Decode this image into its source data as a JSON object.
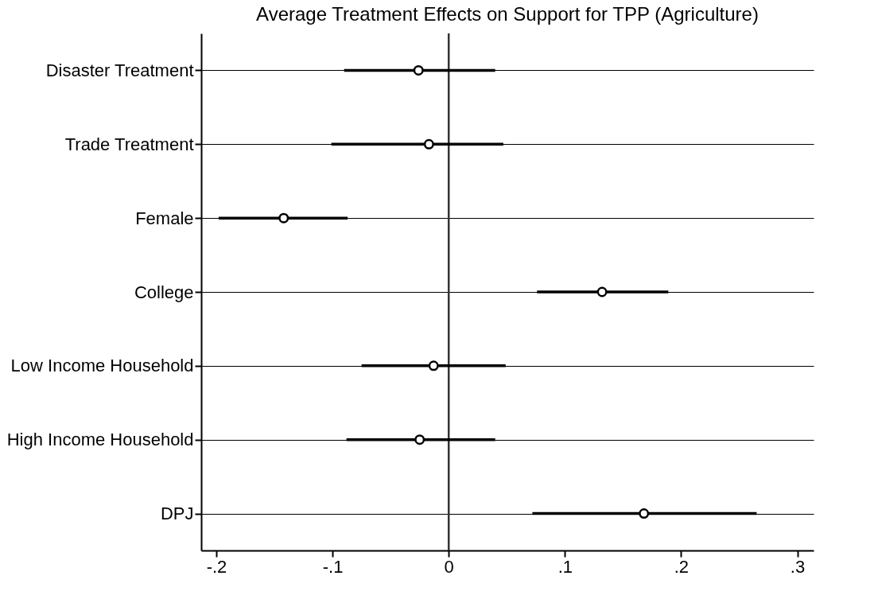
{
  "chart_data": {
    "type": "scatter",
    "orientation": "horizontal",
    "title": "Average Treatment Effects on Support for TPP (Agriculture)",
    "categories": [
      "Disaster Treatment",
      "Trade Treatment",
      "Female",
      "College",
      "Low Income Household",
      "High Income Household",
      "DPJ"
    ],
    "values": [
      -0.026,
      -0.017,
      -0.142,
      0.132,
      -0.013,
      -0.025,
      0.168
    ],
    "errors": [
      [
        -0.09,
        0.04
      ],
      [
        -0.101,
        0.047
      ],
      [
        -0.198,
        -0.087
      ],
      [
        0.076,
        0.189
      ],
      [
        -0.075,
        0.049
      ],
      [
        -0.088,
        0.04
      ],
      [
        0.072,
        0.265
      ]
    ],
    "color": "#000000",
    "marker": "circle",
    "grid": "y",
    "xlim": [
      -0.213,
      0.314
    ],
    "xticks": [
      {
        "value": -0.2,
        "label": "-.2"
      },
      {
        "value": -0.1,
        "label": "-.1"
      },
      0,
      {
        "value": 0.1,
        "label": ".1"
      },
      {
        "value": 0.2,
        "label": ".2"
      },
      {
        "value": 0.3,
        "label": ".3"
      }
    ],
    "ref_lines": [
      {
        "axis": "x",
        "value": 0,
        "color": "#333333"
      }
    ]
  }
}
